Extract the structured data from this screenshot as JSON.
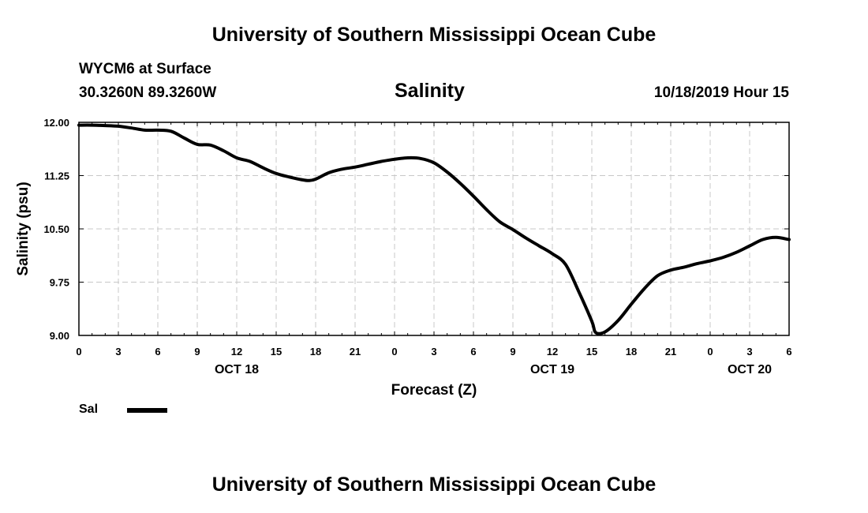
{
  "header": {
    "title": "University of Southern Mississippi Ocean Cube",
    "station": "WYCM6 at Surface",
    "coords": "30.3260N 89.3260W",
    "timestamp": "10/18/2019 Hour 15"
  },
  "footer": {
    "title": "University of Southern Mississippi Ocean Cube"
  },
  "legend": {
    "label": "Sal",
    "color": "#000000"
  },
  "chart_data": {
    "type": "line",
    "title": "Salinity",
    "xlabel": "Forecast (Z)",
    "ylabel": "Salinity (psu)",
    "xlim": [
      0,
      54
    ],
    "ylim": [
      9.0,
      12.0
    ],
    "grid": true,
    "y_ticks": [
      "12.00",
      "11.25",
      "10.50",
      "9.75",
      "9.00"
    ],
    "x_tick_labels": [
      "0",
      "3",
      "6",
      "9",
      "12",
      "15",
      "18",
      "21",
      "0",
      "3",
      "6",
      "9",
      "12",
      "15",
      "18",
      "21",
      "0",
      "3",
      "6"
    ],
    "date_labels": [
      {
        "text": "OCT 18",
        "x": 12
      },
      {
        "text": "OCT 19",
        "x": 36
      },
      {
        "text": "OCT 20",
        "x": 51
      }
    ],
    "series": [
      {
        "name": "Sal",
        "color": "#000000",
        "x": [
          0,
          1,
          2,
          3,
          4,
          5,
          6,
          7,
          8,
          9,
          10,
          11,
          12,
          13,
          14,
          15,
          16,
          17,
          17.5,
          18,
          19,
          20,
          21,
          22,
          23,
          24,
          25,
          26,
          27,
          28,
          29,
          30,
          31,
          32,
          33,
          34,
          35,
          36,
          37,
          38,
          39,
          39.3,
          40,
          41,
          42,
          43,
          44,
          45,
          46,
          47,
          48,
          49,
          50,
          51,
          52,
          53,
          54
        ],
        "values": [
          11.96,
          11.96,
          11.955,
          11.945,
          11.92,
          11.89,
          11.89,
          11.875,
          11.78,
          11.69,
          11.68,
          11.6,
          11.5,
          11.45,
          11.36,
          11.28,
          11.23,
          11.19,
          11.18,
          11.2,
          11.29,
          11.34,
          11.37,
          11.41,
          11.45,
          11.48,
          11.5,
          11.49,
          11.43,
          11.3,
          11.14,
          10.96,
          10.77,
          10.6,
          10.49,
          10.37,
          10.26,
          10.15,
          10.0,
          9.62,
          9.2,
          9.04,
          9.05,
          9.21,
          9.44,
          9.66,
          9.84,
          9.92,
          9.96,
          10.01,
          10.05,
          10.1,
          10.17,
          10.26,
          10.35,
          10.38,
          10.35
        ]
      }
    ]
  }
}
